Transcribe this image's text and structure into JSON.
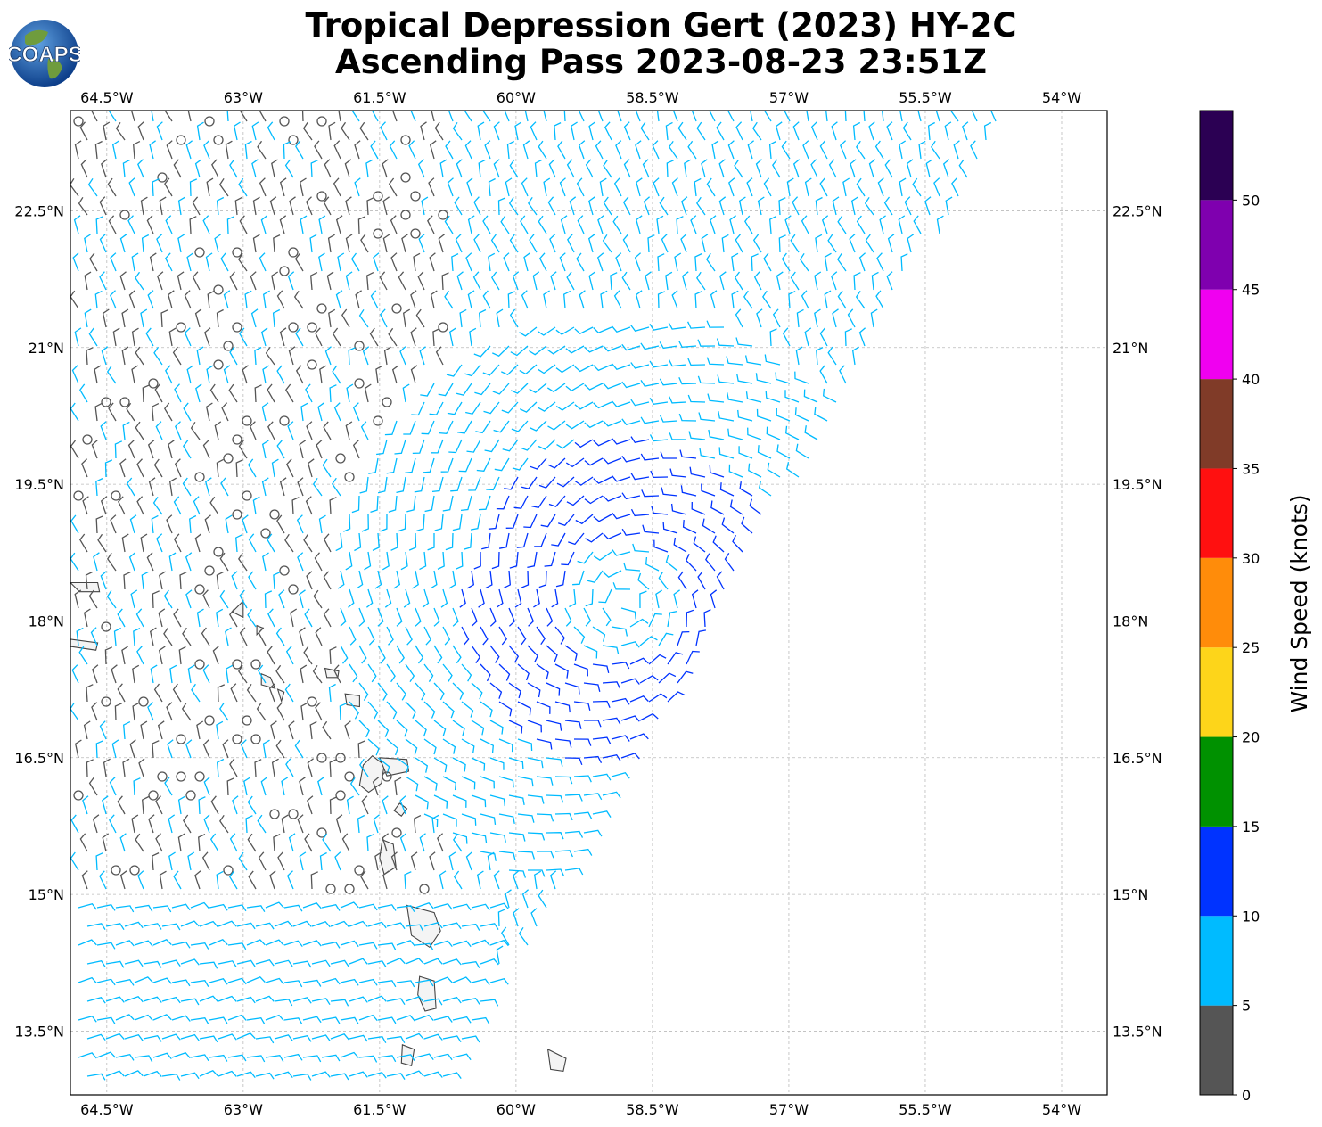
{
  "title": {
    "line1": "Tropical Depression Gert (2023) HY-2C",
    "line2": "Ascending Pass 2023-08-23 23:51Z"
  },
  "logo": {
    "text": "COAPS",
    "icon": "globe-logo-icon"
  },
  "map": {
    "lon_labels": [
      "64.5°W",
      "63°W",
      "61.5°W",
      "60°W",
      "58.5°W",
      "57°W",
      "55.5°W",
      "54°W"
    ],
    "lon_values": [
      -64.5,
      -63,
      -61.5,
      -60,
      -58.5,
      -57,
      -55.5,
      -54
    ],
    "lat_labels": [
      "22.5°N",
      "21°N",
      "19.5°N",
      "18°N",
      "16.5°N",
      "15°N",
      "13.5°N"
    ],
    "lat_values": [
      22.5,
      21,
      19.5,
      18,
      16.5,
      15,
      13.5
    ],
    "lon_range": [
      -64.9,
      -53.5
    ],
    "lat_range": [
      12.8,
      23.6
    ],
    "gridlines": true,
    "storm_center": {
      "lon": -58.8,
      "lat": 18.2
    }
  },
  "colorbar": {
    "label": "Wind Speed (knots)",
    "ticks": [
      "0",
      "5",
      "10",
      "15",
      "20",
      "25",
      "30",
      "35",
      "40",
      "45",
      "50"
    ],
    "bins": [
      {
        "min": 0,
        "max": 5,
        "color": "#555555"
      },
      {
        "min": 5,
        "max": 10,
        "color": "#00bbff"
      },
      {
        "min": 10,
        "max": 15,
        "color": "#0033ff"
      },
      {
        "min": 15,
        "max": 20,
        "color": "#009100"
      },
      {
        "min": 20,
        "max": 25,
        "color": "#fdd51a"
      },
      {
        "min": 25,
        "max": 30,
        "color": "#ff8c0a"
      },
      {
        "min": 30,
        "max": 35,
        "color": "#ff1010"
      },
      {
        "min": 35,
        "max": 40,
        "color": "#803b28"
      },
      {
        "min": 40,
        "max": 45,
        "color": "#f000f0"
      },
      {
        "min": 45,
        "max": 50,
        "color": "#7f00af"
      },
      {
        "min": 50,
        "max": 55,
        "color": "#2b0053"
      }
    ]
  },
  "colors": {
    "land_fill": "#ffffff",
    "coast": "#444444",
    "grid": "#bbbbbb"
  }
}
